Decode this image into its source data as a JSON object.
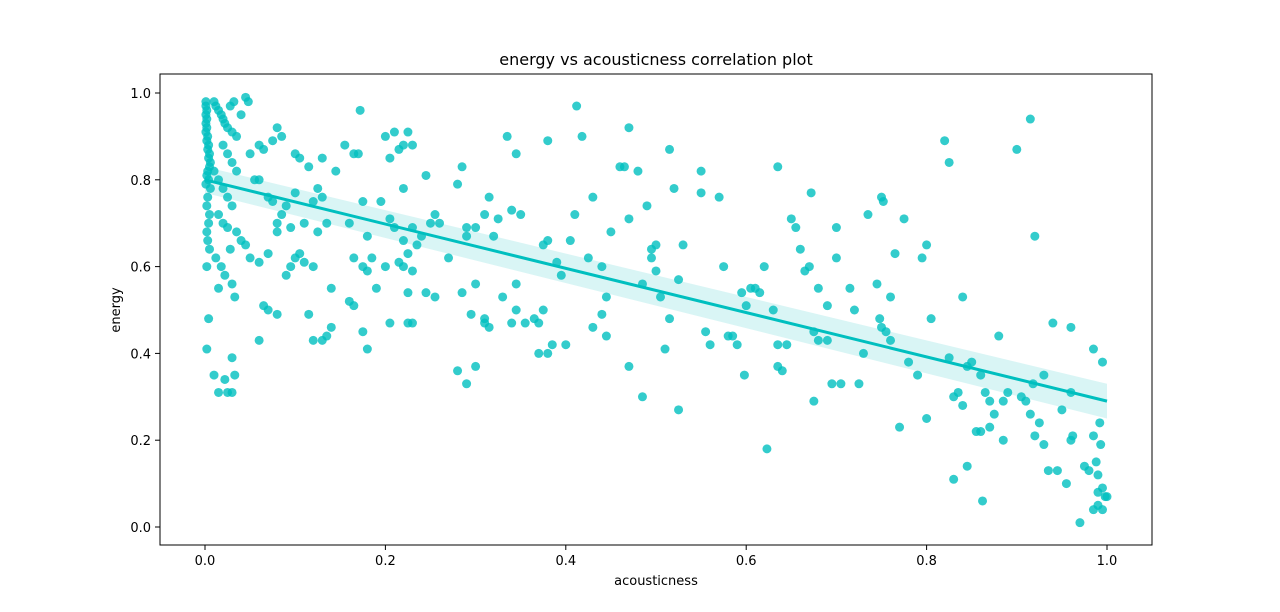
{
  "chart_data": {
    "type": "scatter",
    "title": "energy vs acousticness correlation plot",
    "xlabel": "acousticness",
    "ylabel": "energy",
    "xlim": [
      -0.05,
      1.05
    ],
    "ylim": [
      -0.04,
      1.04
    ],
    "xticks": [
      0.0,
      0.2,
      0.4,
      0.6,
      0.8,
      1.0
    ],
    "xtick_labels": [
      "0.0",
      "0.2",
      "0.4",
      "0.6",
      "0.8",
      "1.0"
    ],
    "yticks": [
      0.0,
      0.2,
      0.4,
      0.6,
      0.8,
      1.0
    ],
    "ytick_labels": [
      "0.0",
      "0.2",
      "0.4",
      "0.6",
      "0.8",
      "1.0"
    ],
    "grid": false,
    "point_color": "#00bfbf",
    "regression": {
      "x": [
        0.0,
        1.0
      ],
      "y": [
        0.8,
        0.29
      ],
      "ci_lower": [
        0.77,
        0.25
      ],
      "ci_upper": [
        0.83,
        0.33
      ],
      "color": "#00bfbf"
    },
    "points": [
      [
        0.001,
        0.98
      ],
      [
        0.001,
        0.97
      ],
      [
        0.002,
        0.96
      ],
      [
        0.001,
        0.95
      ],
      [
        0.002,
        0.94
      ],
      [
        0.001,
        0.93
      ],
      [
        0.002,
        0.92
      ],
      [
        0.001,
        0.91
      ],
      [
        0.003,
        0.9
      ],
      [
        0.002,
        0.89
      ],
      [
        0.004,
        0.88
      ],
      [
        0.003,
        0.87
      ],
      [
        0.005,
        0.86
      ],
      [
        0.004,
        0.85
      ],
      [
        0.006,
        0.84
      ],
      [
        0.005,
        0.83
      ],
      [
        0.003,
        0.82
      ],
      [
        0.002,
        0.81
      ],
      [
        0.004,
        0.8
      ],
      [
        0.001,
        0.79
      ],
      [
        0.006,
        0.78
      ],
      [
        0.003,
        0.76
      ],
      [
        0.002,
        0.74
      ],
      [
        0.005,
        0.72
      ],
      [
        0.004,
        0.7
      ],
      [
        0.002,
        0.68
      ],
      [
        0.003,
        0.66
      ],
      [
        0.005,
        0.64
      ],
      [
        0.002,
        0.6
      ],
      [
        0.004,
        0.48
      ],
      [
        0.002,
        0.41
      ],
      [
        0.01,
        0.98
      ],
      [
        0.012,
        0.97
      ],
      [
        0.015,
        0.96
      ],
      [
        0.018,
        0.95
      ],
      [
        0.02,
        0.94
      ],
      [
        0.022,
        0.93
      ],
      [
        0.025,
        0.92
      ],
      [
        0.03,
        0.91
      ],
      [
        0.035,
        0.9
      ],
      [
        0.04,
        0.95
      ],
      [
        0.045,
        0.99
      ],
      [
        0.048,
        0.98
      ],
      [
        0.032,
        0.98
      ],
      [
        0.028,
        0.97
      ],
      [
        0.02,
        0.88
      ],
      [
        0.025,
        0.86
      ],
      [
        0.03,
        0.84
      ],
      [
        0.035,
        0.82
      ],
      [
        0.01,
        0.82
      ],
      [
        0.015,
        0.8
      ],
      [
        0.02,
        0.78
      ],
      [
        0.025,
        0.76
      ],
      [
        0.03,
        0.74
      ],
      [
        0.015,
        0.72
      ],
      [
        0.02,
        0.7
      ],
      [
        0.025,
        0.69
      ],
      [
        0.035,
        0.68
      ],
      [
        0.04,
        0.66
      ],
      [
        0.028,
        0.64
      ],
      [
        0.012,
        0.62
      ],
      [
        0.018,
        0.6
      ],
      [
        0.022,
        0.58
      ],
      [
        0.03,
        0.56
      ],
      [
        0.015,
        0.55
      ],
      [
        0.033,
        0.53
      ],
      [
        0.01,
        0.35
      ],
      [
        0.022,
        0.34
      ],
      [
        0.033,
        0.35
      ],
      [
        0.03,
        0.39
      ],
      [
        0.015,
        0.31
      ],
      [
        0.025,
        0.31
      ],
      [
        0.03,
        0.31
      ],
      [
        0.045,
        0.65
      ],
      [
        0.05,
        0.62
      ],
      [
        0.055,
        0.8
      ],
      [
        0.06,
        0.8
      ],
      [
        0.05,
        0.86
      ],
      [
        0.06,
        0.88
      ],
      [
        0.065,
        0.87
      ],
      [
        0.07,
        0.76
      ],
      [
        0.075,
        0.75
      ],
      [
        0.08,
        0.7
      ],
      [
        0.085,
        0.72
      ],
      [
        0.09,
        0.74
      ],
      [
        0.095,
        0.69
      ],
      [
        0.1,
        0.77
      ],
      [
        0.075,
        0.89
      ],
      [
        0.08,
        0.92
      ],
      [
        0.085,
        0.9
      ],
      [
        0.1,
        0.86
      ],
      [
        0.105,
        0.85
      ],
      [
        0.11,
        0.7
      ],
      [
        0.115,
        0.83
      ],
      [
        0.12,
        0.75
      ],
      [
        0.125,
        0.78
      ],
      [
        0.06,
        0.61
      ],
      [
        0.07,
        0.63
      ],
      [
        0.08,
        0.68
      ],
      [
        0.09,
        0.58
      ],
      [
        0.095,
        0.6
      ],
      [
        0.1,
        0.62
      ],
      [
        0.105,
        0.63
      ],
      [
        0.11,
        0.61
      ],
      [
        0.12,
        0.6
      ],
      [
        0.065,
        0.51
      ],
      [
        0.07,
        0.5
      ],
      [
        0.08,
        0.49
      ],
      [
        0.06,
        0.43
      ],
      [
        0.115,
        0.49
      ],
      [
        0.12,
        0.43
      ],
      [
        0.13,
        0.43
      ],
      [
        0.135,
        0.44
      ],
      [
        0.14,
        0.46
      ],
      [
        0.14,
        0.55
      ],
      [
        0.125,
        0.68
      ],
      [
        0.135,
        0.7
      ],
      [
        0.13,
        0.85
      ],
      [
        0.13,
        0.76
      ],
      [
        0.145,
        0.82
      ],
      [
        0.155,
        0.88
      ],
      [
        0.165,
        0.86
      ],
      [
        0.17,
        0.86
      ],
      [
        0.172,
        0.96
      ],
      [
        0.175,
        0.75
      ],
      [
        0.18,
        0.67
      ],
      [
        0.185,
        0.62
      ],
      [
        0.165,
        0.62
      ],
      [
        0.16,
        0.7
      ],
      [
        0.175,
        0.6
      ],
      [
        0.18,
        0.59
      ],
      [
        0.19,
        0.55
      ],
      [
        0.16,
        0.52
      ],
      [
        0.165,
        0.51
      ],
      [
        0.175,
        0.45
      ],
      [
        0.18,
        0.41
      ],
      [
        0.2,
        0.9
      ],
      [
        0.21,
        0.91
      ],
      [
        0.22,
        0.88
      ],
      [
        0.215,
        0.87
      ],
      [
        0.225,
        0.91
      ],
      [
        0.23,
        0.88
      ],
      [
        0.205,
        0.85
      ],
      [
        0.22,
        0.78
      ],
      [
        0.195,
        0.75
      ],
      [
        0.205,
        0.71
      ],
      [
        0.21,
        0.69
      ],
      [
        0.22,
        0.66
      ],
      [
        0.225,
        0.63
      ],
      [
        0.215,
        0.61
      ],
      [
        0.22,
        0.6
      ],
      [
        0.2,
        0.6
      ],
      [
        0.23,
        0.59
      ],
      [
        0.235,
        0.65
      ],
      [
        0.24,
        0.67
      ],
      [
        0.25,
        0.7
      ],
      [
        0.255,
        0.72
      ],
      [
        0.245,
        0.81
      ],
      [
        0.26,
        0.7
      ],
      [
        0.23,
        0.69
      ],
      [
        0.225,
        0.54
      ],
      [
        0.245,
        0.54
      ],
      [
        0.255,
        0.53
      ],
      [
        0.23,
        0.47
      ],
      [
        0.225,
        0.47
      ],
      [
        0.205,
        0.47
      ],
      [
        0.27,
        0.62
      ],
      [
        0.28,
        0.79
      ],
      [
        0.285,
        0.83
      ],
      [
        0.29,
        0.69
      ],
      [
        0.3,
        0.69
      ],
      [
        0.29,
        0.67
      ],
      [
        0.285,
        0.54
      ],
      [
        0.3,
        0.56
      ],
      [
        0.295,
        0.49
      ],
      [
        0.31,
        0.48
      ],
      [
        0.315,
        0.46
      ],
      [
        0.31,
        0.47
      ],
      [
        0.29,
        0.33
      ],
      [
        0.28,
        0.36
      ],
      [
        0.3,
        0.37
      ],
      [
        0.31,
        0.72
      ],
      [
        0.315,
        0.76
      ],
      [
        0.325,
        0.71
      ],
      [
        0.32,
        0.67
      ],
      [
        0.33,
        0.53
      ],
      [
        0.335,
        0.9
      ],
      [
        0.345,
        0.86
      ],
      [
        0.34,
        0.73
      ],
      [
        0.35,
        0.72
      ],
      [
        0.345,
        0.56
      ],
      [
        0.345,
        0.5
      ],
      [
        0.34,
        0.47
      ],
      [
        0.355,
        0.47
      ],
      [
        0.37,
        0.47
      ],
      [
        0.365,
        0.48
      ],
      [
        0.37,
        0.4
      ],
      [
        0.38,
        0.4
      ],
      [
        0.385,
        0.42
      ],
      [
        0.375,
        0.65
      ],
      [
        0.38,
        0.66
      ],
      [
        0.39,
        0.61
      ],
      [
        0.395,
        0.58
      ],
      [
        0.38,
        0.89
      ],
      [
        0.375,
        0.5
      ],
      [
        0.4,
        0.42
      ],
      [
        0.405,
        0.66
      ],
      [
        0.41,
        0.72
      ],
      [
        0.412,
        0.97
      ],
      [
        0.418,
        0.9
      ],
      [
        0.425,
        0.62
      ],
      [
        0.43,
        0.76
      ],
      [
        0.44,
        0.6
      ],
      [
        0.445,
        0.53
      ],
      [
        0.43,
        0.46
      ],
      [
        0.44,
        0.49
      ],
      [
        0.445,
        0.44
      ],
      [
        0.45,
        0.68
      ],
      [
        0.46,
        0.83
      ],
      [
        0.465,
        0.83
      ],
      [
        0.47,
        0.92
      ],
      [
        0.47,
        0.71
      ],
      [
        0.48,
        0.82
      ],
      [
        0.485,
        0.56
      ],
      [
        0.49,
        0.74
      ],
      [
        0.495,
        0.64
      ],
      [
        0.5,
        0.65
      ],
      [
        0.495,
        0.62
      ],
      [
        0.5,
        0.59
      ],
      [
        0.505,
        0.53
      ],
      [
        0.51,
        0.41
      ],
      [
        0.485,
        0.3
      ],
      [
        0.47,
        0.37
      ],
      [
        0.515,
        0.87
      ],
      [
        0.52,
        0.78
      ],
      [
        0.525,
        0.57
      ],
      [
        0.53,
        0.65
      ],
      [
        0.515,
        0.48
      ],
      [
        0.525,
        0.27
      ],
      [
        0.55,
        0.82
      ],
      [
        0.55,
        0.77
      ],
      [
        0.555,
        0.45
      ],
      [
        0.56,
        0.42
      ],
      [
        0.57,
        0.76
      ],
      [
        0.575,
        0.6
      ],
      [
        0.58,
        0.44
      ],
      [
        0.585,
        0.44
      ],
      [
        0.59,
        0.42
      ],
      [
        0.595,
        0.54
      ],
      [
        0.6,
        0.51
      ],
      [
        0.605,
        0.55
      ],
      [
        0.598,
        0.35
      ],
      [
        0.61,
        0.55
      ],
      [
        0.615,
        0.54
      ],
      [
        0.62,
        0.6
      ],
      [
        0.623,
        0.18
      ],
      [
        0.63,
        0.5
      ],
      [
        0.635,
        0.83
      ],
      [
        0.635,
        0.42
      ],
      [
        0.635,
        0.37
      ],
      [
        0.64,
        0.36
      ],
      [
        0.645,
        0.42
      ],
      [
        0.65,
        0.71
      ],
      [
        0.655,
        0.69
      ],
      [
        0.66,
        0.64
      ],
      [
        0.665,
        0.59
      ],
      [
        0.67,
        0.6
      ],
      [
        0.672,
        0.77
      ],
      [
        0.675,
        0.45
      ],
      [
        0.68,
        0.55
      ],
      [
        0.68,
        0.43
      ],
      [
        0.675,
        0.29
      ],
      [
        0.69,
        0.43
      ],
      [
        0.69,
        0.51
      ],
      [
        0.695,
        0.33
      ],
      [
        0.7,
        0.69
      ],
      [
        0.7,
        0.62
      ],
      [
        0.705,
        0.33
      ],
      [
        0.715,
        0.55
      ],
      [
        0.72,
        0.5
      ],
      [
        0.725,
        0.33
      ],
      [
        0.73,
        0.4
      ],
      [
        0.735,
        0.72
      ],
      [
        0.745,
        0.56
      ],
      [
        0.75,
        0.76
      ],
      [
        0.752,
        0.75
      ],
      [
        0.748,
        0.48
      ],
      [
        0.75,
        0.46
      ],
      [
        0.755,
        0.45
      ],
      [
        0.76,
        0.53
      ],
      [
        0.76,
        0.43
      ],
      [
        0.765,
        0.63
      ],
      [
        0.77,
        0.23
      ],
      [
        0.775,
        0.71
      ],
      [
        0.78,
        0.38
      ],
      [
        0.79,
        0.35
      ],
      [
        0.795,
        0.62
      ],
      [
        0.8,
        0.65
      ],
      [
        0.805,
        0.48
      ],
      [
        0.8,
        0.25
      ],
      [
        0.82,
        0.89
      ],
      [
        0.825,
        0.84
      ],
      [
        0.825,
        0.39
      ],
      [
        0.83,
        0.3
      ],
      [
        0.83,
        0.11
      ],
      [
        0.835,
        0.31
      ],
      [
        0.84,
        0.53
      ],
      [
        0.84,
        0.28
      ],
      [
        0.845,
        0.37
      ],
      [
        0.845,
        0.14
      ],
      [
        0.85,
        0.38
      ],
      [
        0.855,
        0.22
      ],
      [
        0.86,
        0.35
      ],
      [
        0.86,
        0.22
      ],
      [
        0.862,
        0.06
      ],
      [
        0.865,
        0.31
      ],
      [
        0.87,
        0.29
      ],
      [
        0.87,
        0.23
      ],
      [
        0.875,
        0.26
      ],
      [
        0.88,
        0.44
      ],
      [
        0.885,
        0.2
      ],
      [
        0.885,
        0.29
      ],
      [
        0.89,
        0.31
      ],
      [
        0.9,
        0.87
      ],
      [
        0.905,
        0.3
      ],
      [
        0.91,
        0.29
      ],
      [
        0.915,
        0.94
      ],
      [
        0.915,
        0.26
      ],
      [
        0.918,
        0.33
      ],
      [
        0.92,
        0.67
      ],
      [
        0.92,
        0.21
      ],
      [
        0.925,
        0.24
      ],
      [
        0.93,
        0.35
      ],
      [
        0.93,
        0.19
      ],
      [
        0.935,
        0.13
      ],
      [
        0.94,
        0.47
      ],
      [
        0.945,
        0.13
      ],
      [
        0.95,
        0.27
      ],
      [
        0.955,
        0.1
      ],
      [
        0.96,
        0.46
      ],
      [
        0.96,
        0.31
      ],
      [
        0.96,
        0.2
      ],
      [
        0.962,
        0.21
      ],
      [
        0.97,
        0.01
      ],
      [
        0.975,
        0.14
      ],
      [
        0.98,
        0.13
      ],
      [
        0.985,
        0.41
      ],
      [
        0.985,
        0.21
      ],
      [
        0.985,
        0.04
      ],
      [
        0.988,
        0.15
      ],
      [
        0.99,
        0.12
      ],
      [
        0.99,
        0.08
      ],
      [
        0.992,
        0.24
      ],
      [
        0.993,
        0.19
      ],
      [
        0.995,
        0.38
      ],
      [
        0.995,
        0.09
      ],
      [
        0.995,
        0.04
      ],
      [
        0.998,
        0.07
      ],
      [
        1.0,
        0.07
      ],
      [
        0.99,
        0.05
      ]
    ]
  }
}
